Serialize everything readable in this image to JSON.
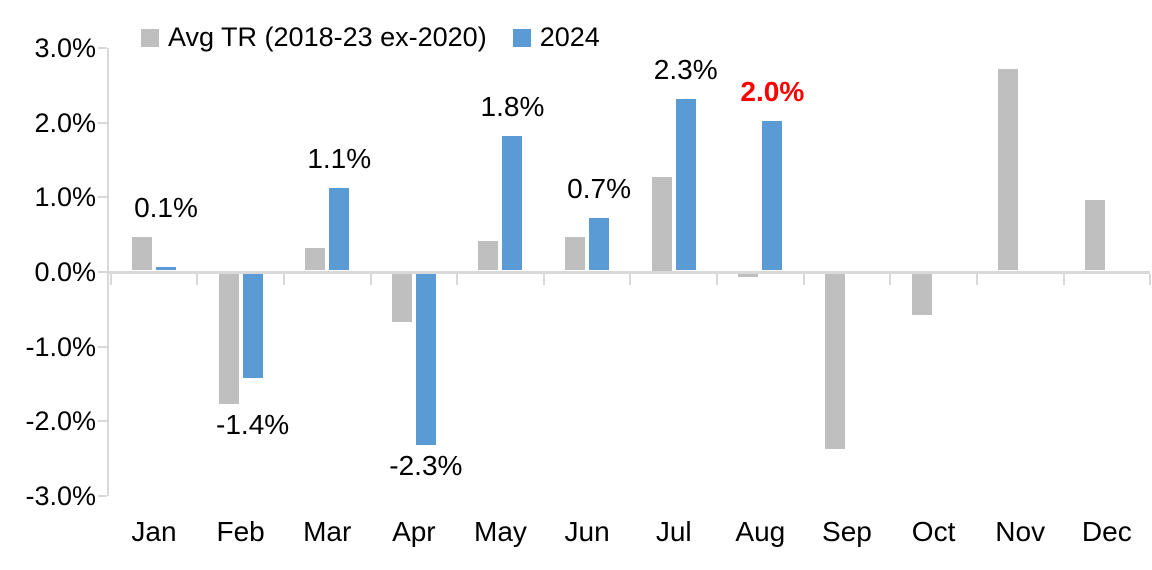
{
  "legend": {
    "items": [
      {
        "label": "Avg TR (2018-23 ex-2020)",
        "color_key": "avg"
      },
      {
        "label": "2024",
        "color_key": "y2024"
      }
    ]
  },
  "colors": {
    "avg": "#bfbfbf",
    "y2024": "#5b9bd5",
    "axis": "#d9d9d9",
    "text": "#000000",
    "label_highlight": "#ff0000"
  },
  "chart_data": {
    "type": "bar",
    "title": "",
    "xlabel": "",
    "ylabel": "",
    "grid": false,
    "legend_position": "top-left",
    "categories": [
      "Jan",
      "Feb",
      "Mar",
      "Apr",
      "May",
      "Jun",
      "Jul",
      "Aug",
      "Sep",
      "Oct",
      "Nov",
      "Dec"
    ],
    "series": [
      {
        "name": "Avg TR (2018-23 ex-2020)",
        "color_key": "avg",
        "values": [
          0.45,
          -1.75,
          0.3,
          -0.65,
          0.4,
          0.45,
          1.25,
          -0.05,
          -2.35,
          -0.55,
          2.7,
          0.95
        ]
      },
      {
        "name": "2024",
        "color_key": "y2024",
        "values": [
          0.05,
          -1.4,
          1.1,
          -2.3,
          1.8,
          0.7,
          2.3,
          2.0,
          null,
          null,
          null,
          null
        ]
      }
    ],
    "data_labels": [
      {
        "month_index": 0,
        "text": "0.1%",
        "highlight": false
      },
      {
        "month_index": 1,
        "text": "-1.4%",
        "highlight": false
      },
      {
        "month_index": 2,
        "text": "1.1%",
        "highlight": false
      },
      {
        "month_index": 3,
        "text": "-2.3%",
        "highlight": false
      },
      {
        "month_index": 4,
        "text": "1.8%",
        "highlight": false
      },
      {
        "month_index": 5,
        "text": "0.7%",
        "highlight": false
      },
      {
        "month_index": 6,
        "text": "2.3%",
        "highlight": false
      },
      {
        "month_index": 7,
        "text": "2.0%",
        "highlight": true
      }
    ],
    "y_axis": {
      "ticks": [
        "3.0%",
        "2.0%",
        "1.0%",
        "0.0%",
        "-1.0%",
        "-2.0%",
        "-3.0%"
      ],
      "tick_values": [
        3,
        2,
        1,
        0,
        -1,
        -2,
        -3
      ],
      "min": -3,
      "max": 3
    }
  }
}
